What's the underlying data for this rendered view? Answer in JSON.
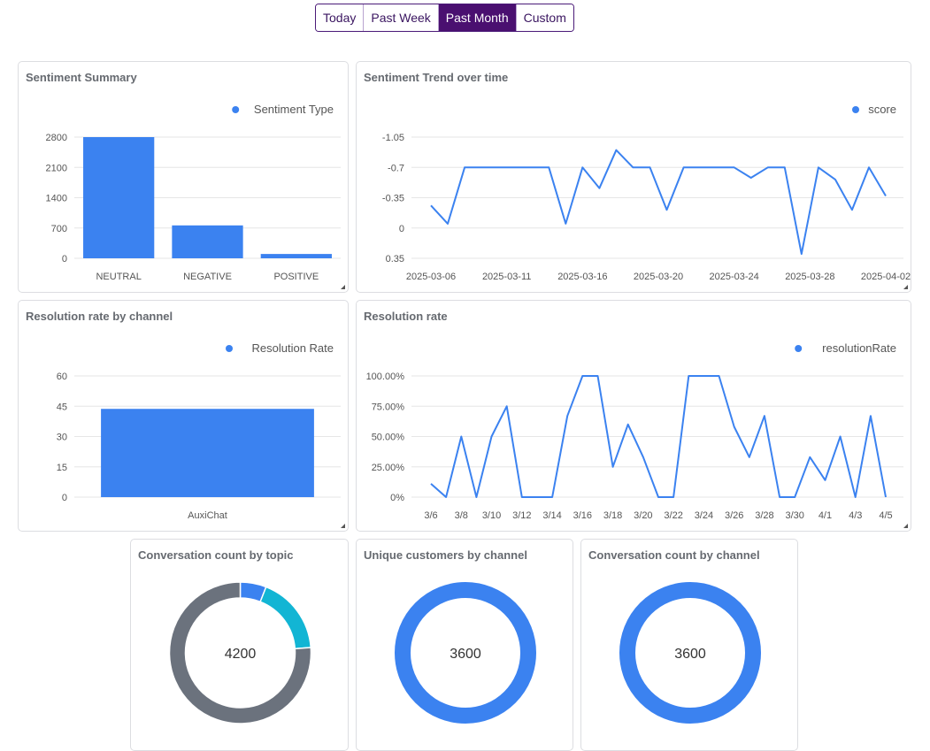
{
  "date_range": {
    "options": [
      "Today",
      "Past Week",
      "Past Month",
      "Custom"
    ],
    "selected": "Past Month"
  },
  "colors": {
    "accent": "#4a1070",
    "series": "#3b82f0",
    "cyan": "#12b5d4",
    "gray": "#6b727d"
  },
  "panels": {
    "sentiment_summary": {
      "title": "Sentiment Summary"
    },
    "sentiment_trend": {
      "title": "Sentiment Trend over time"
    },
    "resolution_by_channel": {
      "title": "Resolution rate by channel"
    },
    "resolution_rate": {
      "title": "Resolution rate"
    },
    "conv_by_topic": {
      "title": "Conversation count by topic",
      "center": "4200"
    },
    "unique_customers": {
      "title": "Unique customers by channel",
      "center": "3600"
    },
    "conv_by_channel": {
      "title": "Conversation count by channel",
      "center": "3600"
    }
  },
  "chart_data": [
    {
      "id": "sentiment_summary",
      "type": "bar",
      "legend": "Sentiment Type",
      "legend_position": "top-right",
      "categories": [
        "NEUTRAL",
        "NEGATIVE",
        "POSITIVE"
      ],
      "values": [
        2800,
        760,
        100
      ],
      "yticks": [
        "0",
        "700",
        "1400",
        "2100",
        "2800"
      ],
      "ylim": [
        0,
        2800
      ],
      "grid": true
    },
    {
      "id": "sentiment_trend",
      "type": "line",
      "legend": "score",
      "legend_position": "top-right",
      "xticks": [
        "2025-03-06",
        "2025-03-11",
        "2025-03-16",
        "2025-03-20",
        "2025-03-24",
        "2025-03-28",
        "2025-04-02"
      ],
      "yticks": [
        "0.35",
        "0",
        "-0.35",
        "-0.7",
        "-1.05"
      ],
      "ylim": [
        -1.05,
        0.35
      ],
      "values": [
        -0.44,
        -0.65,
        0,
        0,
        0,
        0,
        0,
        0,
        -0.65,
        0,
        -0.24,
        0.2,
        0,
        0,
        -0.49,
        0,
        0,
        0,
        0,
        -0.12,
        0,
        0,
        -1,
        0,
        -0.14,
        -0.49,
        0,
        -0.33
      ],
      "grid": true
    },
    {
      "id": "resolution_by_channel",
      "type": "bar",
      "legend": "Resolution Rate",
      "legend_position": "top-right",
      "categories": [
        "AuxiChat"
      ],
      "values": [
        43.7
      ],
      "yticks": [
        "0",
        "15",
        "30",
        "45",
        "60"
      ],
      "ylim": [
        0,
        60
      ],
      "grid": true
    },
    {
      "id": "resolution_rate",
      "type": "line",
      "legend": "resolutionRate",
      "legend_position": "top-right",
      "xticks": [
        "3/6",
        "3/8",
        "3/10",
        "3/12",
        "3/14",
        "3/16",
        "3/18",
        "3/20",
        "3/22",
        "3/24",
        "3/26",
        "3/28",
        "3/30",
        "4/1",
        "4/3",
        "4/5"
      ],
      "yticks": [
        "0%",
        "25.00%",
        "50.00%",
        "75.00%",
        "100.00%"
      ],
      "ylim": [
        0,
        100
      ],
      "values": [
        11,
        0,
        50,
        0,
        50,
        75,
        0,
        0,
        0,
        67,
        100,
        100,
        25,
        60,
        33,
        0,
        0,
        100,
        100,
        100,
        58,
        33,
        67,
        0,
        0,
        33,
        14,
        50,
        0,
        67,
        0
      ],
      "grid": true
    },
    {
      "id": "conv_by_topic",
      "type": "pie",
      "donut": true,
      "total": 4200,
      "slices": [
        {
          "value": 250,
          "color": "#3b82f0"
        },
        {
          "value": 750,
          "color": "#12b5d4"
        },
        {
          "value": 3200,
          "color": "#6b727d"
        }
      ]
    },
    {
      "id": "unique_customers",
      "type": "pie",
      "donut": true,
      "total": 3600,
      "slices": [
        {
          "value": 3600,
          "color": "#3b82f0"
        }
      ]
    },
    {
      "id": "conv_by_channel",
      "type": "pie",
      "donut": true,
      "total": 3600,
      "slices": [
        {
          "value": 3600,
          "color": "#3b82f0"
        }
      ]
    }
  ]
}
